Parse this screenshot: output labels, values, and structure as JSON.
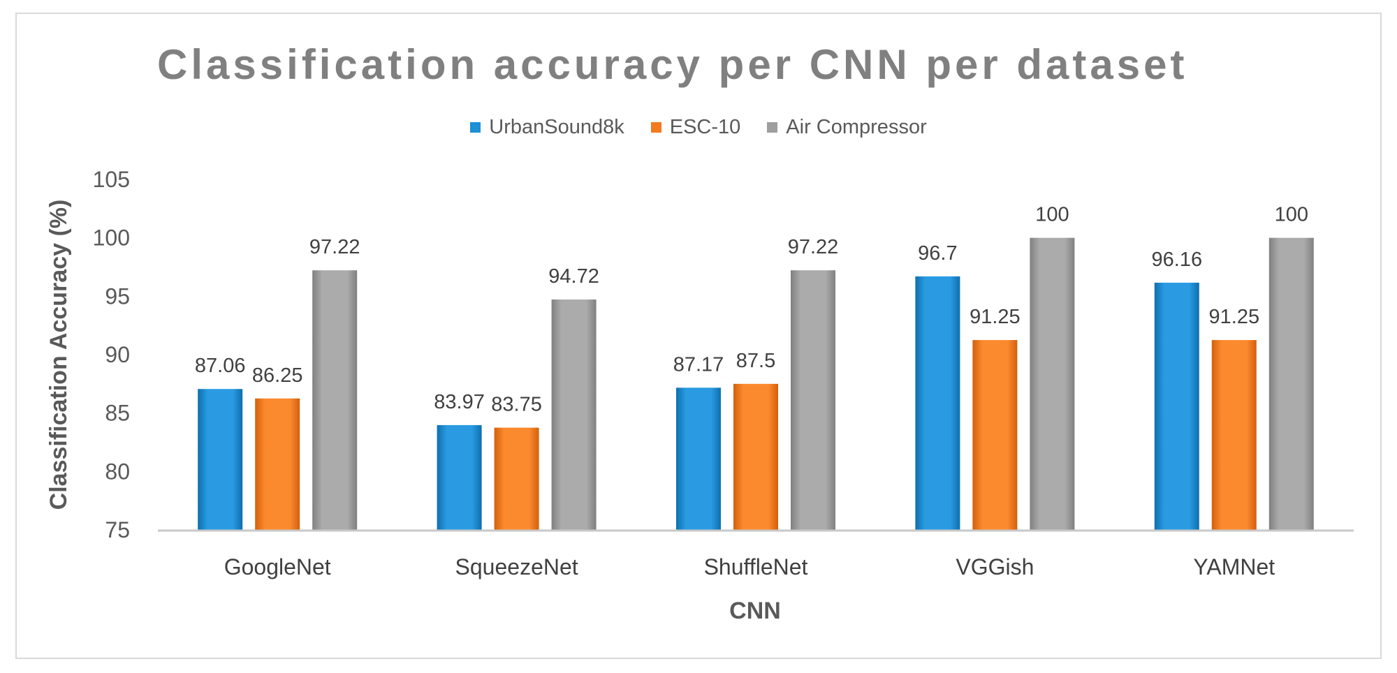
{
  "chart_data": {
    "type": "bar",
    "title": "Classification accuracy per CNN per dataset",
    "xlabel": "CNN",
    "ylabel": "Classification Accuracy (%)",
    "ylim": [
      75,
      105
    ],
    "yticks": [
      75,
      80,
      85,
      90,
      95,
      100,
      105
    ],
    "grid": false,
    "legend_position": "top-center",
    "categories": [
      "GoogleNet",
      "SqueezeNet",
      "ShuffleNet",
      "VGGish",
      "YAMNet"
    ],
    "series": [
      {
        "name": "UrbanSound8k",
        "color": "#1f8fd6",
        "values": [
          87.06,
          83.97,
          87.17,
          96.7,
          96.16
        ],
        "labels": [
          "87.06",
          "83.97",
          "87.17",
          "96.7",
          "96.16"
        ]
      },
      {
        "name": "ESC-10",
        "color": "#f27a1f",
        "values": [
          86.25,
          83.75,
          87.5,
          91.25,
          91.25
        ],
        "labels": [
          "86.25",
          "83.75",
          "87.5",
          "91.25",
          "91.25"
        ]
      },
      {
        "name": "Air Compressor",
        "color": "#9e9e9e",
        "values": [
          97.22,
          94.72,
          97.22,
          100,
          100
        ],
        "labels": [
          "97.22",
          "94.72",
          "97.22",
          "100",
          "100"
        ]
      }
    ]
  }
}
